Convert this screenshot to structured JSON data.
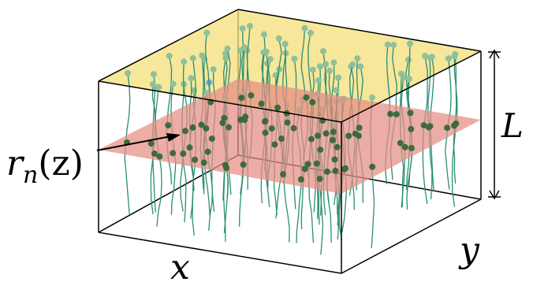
{
  "labels": {
    "radius": "r",
    "radius_sub": "n",
    "radius_arg": "(z)",
    "height": "L",
    "x_axis": "x",
    "y_axis": "y"
  },
  "colors": {
    "top_plane": "#f3df7a",
    "slice_plane": "#e58d84",
    "fiber": "#2a8e73",
    "bead_top": "#8fc09a",
    "bead_top_highlight": "#6fa8d8",
    "bead_slice": "#3d6b3f",
    "box_edge": "#000000"
  }
}
